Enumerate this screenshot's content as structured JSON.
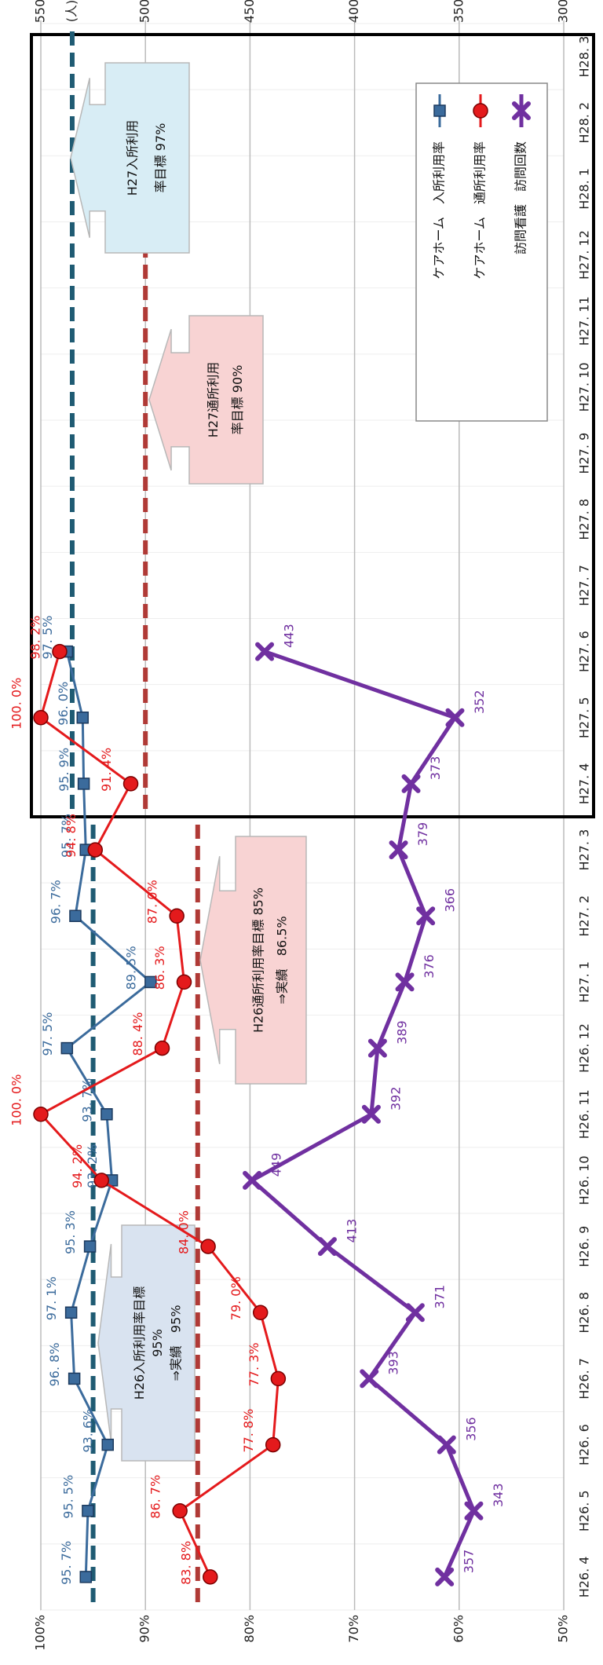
{
  "chart_data": {
    "type": "line",
    "categories": [
      "H26. 4",
      "H26. 5",
      "H26. 6",
      "H26. 7",
      "H26. 8",
      "H26. 9",
      "H26. 10",
      "H26. 11",
      "H26. 12",
      "H27. 1",
      "H27. 2",
      "H27. 3",
      "H27. 4",
      "H27. 5",
      "H27. 6",
      "H27. 7",
      "H27. 8",
      "H27. 9",
      "H27. 10",
      "H27. 11",
      "H27. 12",
      "H28. 1",
      "H28. 2",
      "H28. 3"
    ],
    "series": [
      {
        "name": "ケアホーム　入所利用率",
        "color": "#3b6b9c",
        "marker": "square",
        "axis": "y",
        "values": [
          95.7,
          95.5,
          93.6,
          96.8,
          97.1,
          95.3,
          93.2,
          93.7,
          97.5,
          89.5,
          96.7,
          95.7,
          95.9,
          96.0,
          97.5,
          null,
          null,
          null,
          null,
          null,
          null,
          null,
          null,
          null
        ],
        "value_labels": [
          "95. 7%",
          "95. 5%",
          "93. 6%",
          "96. 8%",
          "97. 1%",
          "95. 3%",
          "93. 2%",
          "93. 7%",
          "97. 5%",
          "89. 5%",
          "96. 7%",
          "95. 7%",
          "95. 9%",
          "96. 0%",
          "97. 5%",
          null,
          null,
          null,
          null,
          null,
          null,
          null,
          null,
          null
        ]
      },
      {
        "name": "ケアホーム　通所利用率",
        "color": "#e41a1c",
        "marker": "circle",
        "axis": "y",
        "values": [
          83.8,
          86.7,
          77.8,
          77.3,
          79.0,
          84.0,
          94.2,
          100.0,
          88.4,
          86.3,
          87.0,
          94.8,
          91.4,
          100.0,
          98.2,
          null,
          null,
          null,
          null,
          null,
          null,
          null,
          null,
          null
        ],
        "value_labels": [
          "83. 8%",
          "86. 7%",
          "77. 8%",
          "77. 3%",
          "79. 0%",
          "84. 0%",
          "94. 2%",
          "100. 0%",
          "88. 4%",
          "86. 3%",
          "87. 0%",
          "94. 8%",
          "91. 4%",
          "100. 0%",
          "98. 2%",
          null,
          null,
          null,
          null,
          null,
          null,
          null,
          null,
          null
        ]
      },
      {
        "name": "訪問看護　訪問回数",
        "color": "#7030a0",
        "marker": "cross",
        "axis": "y2",
        "values": [
          357,
          343,
          356,
          393,
          371,
          413,
          449,
          392,
          389,
          376,
          366,
          379,
          373,
          352,
          443,
          null,
          null,
          null,
          null,
          null,
          null,
          null,
          null,
          null
        ]
      }
    ],
    "ylim": [
      50,
      100
    ],
    "yticks": [
      {
        "value": 50,
        "label": "50%"
      },
      {
        "value": 60,
        "label": "60%"
      },
      {
        "value": 70,
        "label": "70%"
      },
      {
        "value": 80,
        "label": "80%"
      },
      {
        "value": 90,
        "label": "90%"
      },
      {
        "value": 100,
        "label": "100%"
      }
    ],
    "y2lim": [
      300,
      550
    ],
    "y2ticks": [
      300,
      350,
      400,
      450,
      500,
      550
    ],
    "y2label": "(人)",
    "grid": true,
    "legend": "upper right",
    "targets": [
      {
        "value": 95,
        "axis": "y",
        "color": "#1f5b73",
        "from": "H26. 4",
        "to": "H27. 3"
      },
      {
        "value": 97,
        "axis": "y",
        "color": "#1f5b73",
        "from": "H27. 4",
        "to": "H28. 3"
      },
      {
        "value": 85,
        "axis": "y",
        "color": "#b03a36",
        "from": "H26. 4",
        "to": "H27. 3"
      },
      {
        "value": 90,
        "axis": "y",
        "color": "#b03a36",
        "from": "H27. 4",
        "to": "H27. 12"
      }
    ],
    "annotations": [
      {
        "lines": [
          "H27入所利用",
          "率目標 97%"
        ],
        "color": "#d8edf5"
      },
      {
        "lines": [
          "H27通所利用",
          "率目標 90%"
        ],
        "color": "#f8d3d3"
      },
      {
        "lines": [
          "H26通所利用率目標 85%",
          "⇒実績　86.5%"
        ],
        "color": "#f8d3d3"
      },
      {
        "lines": [
          "H26入所利用率目標",
          "95%",
          "⇒実績　95%"
        ],
        "color": "#d9e3f0"
      }
    ]
  }
}
